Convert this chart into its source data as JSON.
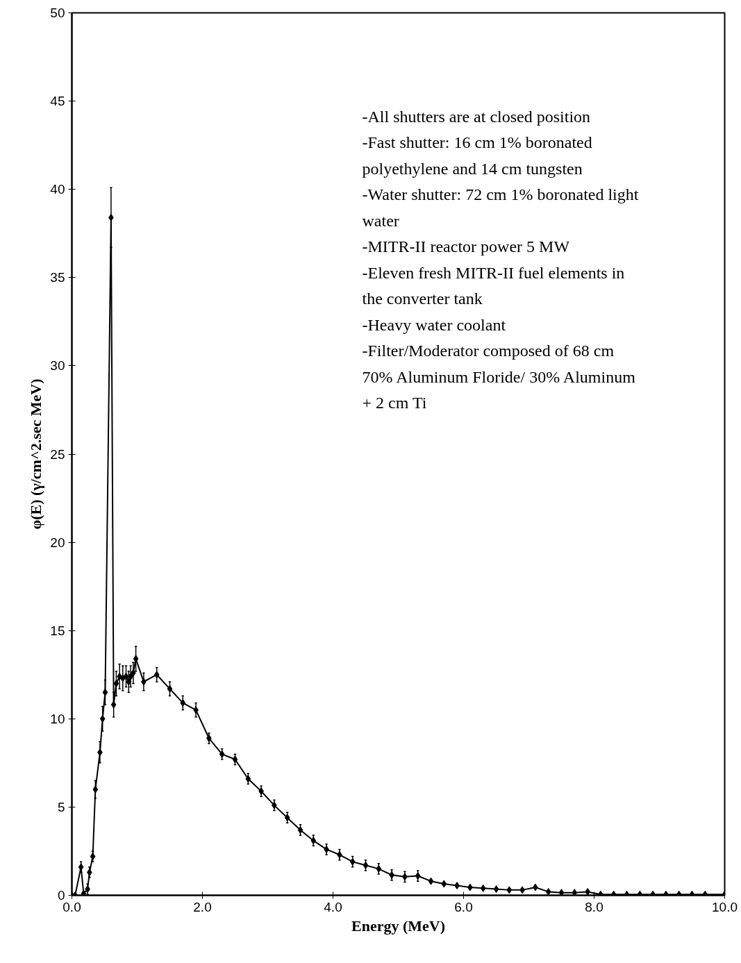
{
  "chart_data": {
    "type": "line",
    "xlabel": "Energy (MeV)",
    "ylabel": "φ(E) (γ/cm^2.sec MeV)",
    "x": [
      0.0,
      0.05,
      0.14,
      0.18,
      0.24,
      0.27,
      0.32,
      0.36,
      0.43,
      0.47,
      0.51,
      0.6,
      0.64,
      0.68,
      0.73,
      0.78,
      0.83,
      0.87,
      0.9,
      0.94,
      0.98,
      1.1,
      1.3,
      1.5,
      1.7,
      1.9,
      2.1,
      2.3,
      2.5,
      2.7,
      2.9,
      3.1,
      3.3,
      3.5,
      3.7,
      3.9,
      4.1,
      4.3,
      4.5,
      4.7,
      4.9,
      5.1,
      5.3,
      5.5,
      5.7,
      5.9,
      6.1,
      6.3,
      6.5,
      6.7,
      6.9,
      7.1,
      7.3,
      7.5,
      7.7,
      7.9,
      8.1,
      8.3,
      8.5,
      8.7,
      8.9,
      9.1,
      9.3,
      9.5,
      9.7,
      10.0
    ],
    "values": [
      0,
      0,
      1.6,
      0.1,
      0.35,
      1.3,
      2.2,
      6.0,
      8.1,
      10.0,
      11.5,
      38.4,
      10.8,
      12.0,
      12.4,
      12.3,
      12.4,
      12.1,
      12.4,
      12.6,
      13.4,
      12.1,
      12.5,
      11.7,
      10.9,
      10.5,
      8.9,
      8.0,
      7.7,
      6.6,
      5.9,
      5.1,
      4.4,
      3.7,
      3.1,
      2.6,
      2.3,
      1.9,
      1.7,
      1.5,
      1.15,
      1.05,
      1.1,
      0.8,
      0.65,
      0.55,
      0.45,
      0.4,
      0.35,
      0.3,
      0.3,
      0.45,
      0.2,
      0.15,
      0.15,
      0.2,
      0.05,
      0.05,
      0.05,
      0.05,
      0.05,
      0.05,
      0.05,
      0.05,
      0.05,
      0.05
    ],
    "errors": [
      null,
      null,
      0.3,
      null,
      0.3,
      0.3,
      0.3,
      0.5,
      0.6,
      0.7,
      0.7,
      [
        36.7,
        40.1
      ],
      0.7,
      0.7,
      0.7,
      0.7,
      0.6,
      0.6,
      0.6,
      0.6,
      0.7,
      0.5,
      0.4,
      0.4,
      0.4,
      0.4,
      0.3,
      0.3,
      0.3,
      0.3,
      0.3,
      0.3,
      0.3,
      0.3,
      0.3,
      0.3,
      0.3,
      0.3,
      0.3,
      0.3,
      0.3,
      0.3,
      0.3,
      null,
      null,
      null,
      null,
      null,
      null,
      null,
      null,
      null,
      null,
      null,
      null,
      null,
      null,
      null,
      null,
      null,
      null,
      null,
      null,
      null,
      null,
      null
    ],
    "color": "#000000",
    "marker": "diamond",
    "line_style": "solid",
    "grid": false,
    "xlim": [
      0,
      10
    ],
    "ylim": [
      0,
      50
    ],
    "xticks": [
      {
        "value": 0,
        "label": "0.0"
      },
      {
        "value": 2,
        "label": "2.0"
      },
      {
        "value": 4,
        "label": "4.0"
      },
      {
        "value": 6,
        "label": "6.0"
      },
      {
        "value": 8,
        "label": "8.0"
      },
      {
        "value": 10,
        "label": "10.0"
      }
    ],
    "yticks": [
      0,
      5,
      10,
      15,
      20,
      25,
      30,
      35,
      40,
      45,
      50
    ],
    "annotations": [
      "-All shutters are at closed position",
      "-Fast shutter: 16 cm 1% boronated",
      "polyethylene and 14 cm tungsten",
      "-Water shutter: 72 cm 1% boronated light",
      "water",
      "-MITR-II reactor power 5 MW",
      "-Eleven fresh MITR-II fuel elements in",
      "the converter tank",
      "-Heavy water coolant",
      "-Filter/Moderator composed of 68 cm",
      "70% Aluminum Floride/ 30% Aluminum",
      "+ 2 cm Ti"
    ]
  }
}
